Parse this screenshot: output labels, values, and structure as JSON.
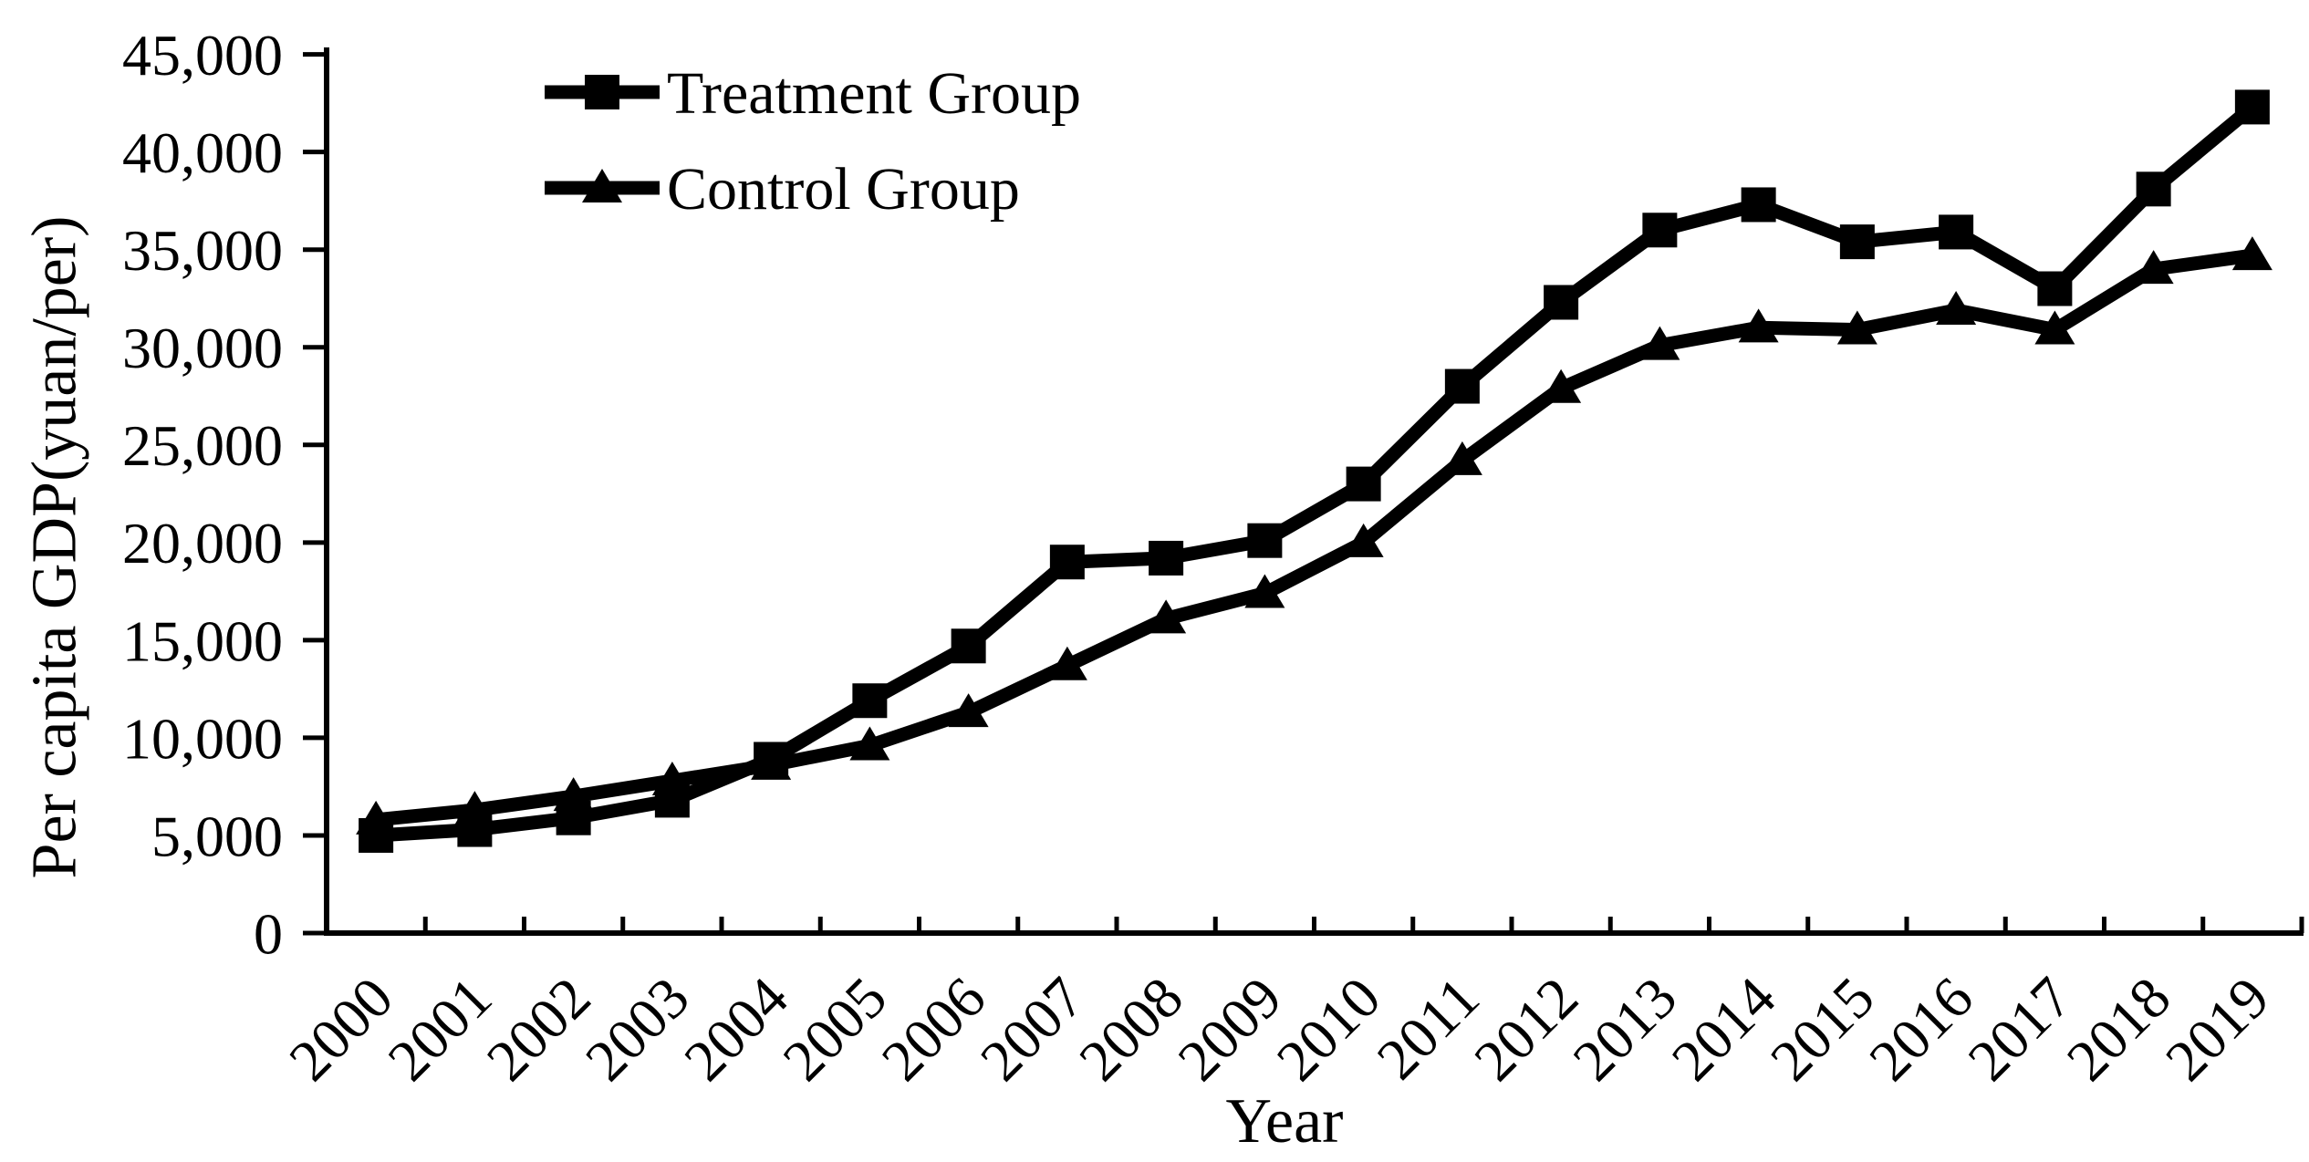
{
  "figure": {
    "background_color": "#ffffff",
    "ink_color": "#000000"
  },
  "chart_data": {
    "type": "line",
    "title": "",
    "xlabel": "Year",
    "ylabel": "Per capita GDP(yuan/per)",
    "x": [
      "2000",
      "2001",
      "2002",
      "2003",
      "2004",
      "2005",
      "2006",
      "2007",
      "2008",
      "2009",
      "2010",
      "2011",
      "2012",
      "2013",
      "2014",
      "2015",
      "2016",
      "2017",
      "2018",
      "2019"
    ],
    "ylim": [
      0,
      45000
    ],
    "ytick_step": 5000,
    "yticks": [
      {
        "value": 0,
        "label": "0"
      },
      {
        "value": 5000,
        "label": "5,000"
      },
      {
        "value": 10000,
        "label": "10,000"
      },
      {
        "value": 15000,
        "label": "15,000"
      },
      {
        "value": 20000,
        "label": "20,000"
      },
      {
        "value": 25000,
        "label": "25,000"
      },
      {
        "value": 30000,
        "label": "30,000"
      },
      {
        "value": 35000,
        "label": "35,000"
      },
      {
        "value": 40000,
        "label": "40,000"
      },
      {
        "value": 45000,
        "label": "45,000"
      }
    ],
    "grid": false,
    "legend_position": "inside-top-left",
    "series": [
      {
        "name": "Treatment Group",
        "marker": "square",
        "color": "#000000",
        "values": [
          5000,
          5300,
          5900,
          6800,
          8900,
          11900,
          14700,
          19000,
          19200,
          20100,
          23000,
          28000,
          32300,
          36000,
          37300,
          35400,
          35900,
          33000,
          38100,
          42300
        ]
      },
      {
        "name": "Control Group",
        "marker": "triangle",
        "color": "#000000",
        "values": [
          5800,
          6300,
          7000,
          7800,
          8600,
          9600,
          11300,
          13700,
          16100,
          17400,
          20000,
          24200,
          27900,
          30100,
          31000,
          30900,
          31900,
          30900,
          34000,
          34700
        ]
      }
    ]
  }
}
